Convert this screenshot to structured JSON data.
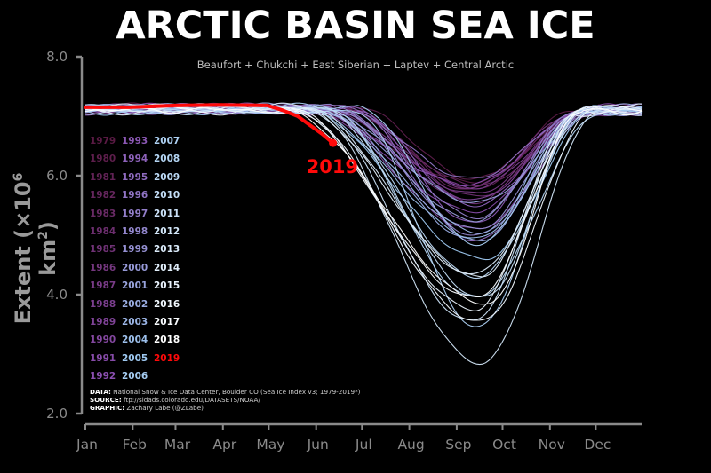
{
  "title": "ARCTIC BASIN SEA ICE",
  "subtitle": "Beaufort + Chukchi + East Siberian + Laptev + Central Arctic",
  "ylabel_text": "Extent (×10",
  "ylabel_sup": "6",
  "ylabel_unit": " km",
  "ylabel_sup2": "2",
  "ylabel_close": ")",
  "sources": {
    "data_label": "DATA:",
    "data_text": " National Snow & Ice Data Center, Boulder CO (Sea Ice Index v3; 1979-2019*)",
    "source_label": "SOURCE:",
    "source_text": " ftp://sidads.colorado.edu/DATASETS/NOAA/",
    "graphic_label": "GRAPHIC:",
    "graphic_text": " Zachary Labe (@ZLabe)"
  },
  "highlight_label": "2019",
  "colors": {
    "highlight": "#ff0a0a",
    "axis": "#8a8a8a",
    "early": "#5a1a44",
    "mid": "#8a4fb0",
    "late": "#9ec8f0",
    "latest": "#ffffff"
  },
  "legend_years": [
    [
      "1979",
      "1993",
      "2007"
    ],
    [
      "1980",
      "1994",
      "2008"
    ],
    [
      "1981",
      "1995",
      "2009"
    ],
    [
      "1982",
      "1996",
      "2010"
    ],
    [
      "1983",
      "1997",
      "2011"
    ],
    [
      "1984",
      "1998",
      "2012"
    ],
    [
      "1985",
      "1999",
      "2013"
    ],
    [
      "1986",
      "2000",
      "2014"
    ],
    [
      "1987",
      "2001",
      "2015"
    ],
    [
      "1988",
      "2002",
      "2016"
    ],
    [
      "1989",
      "2003",
      "2017"
    ],
    [
      "1990",
      "2004",
      "2018"
    ],
    [
      "1991",
      "2005",
      "2019"
    ],
    [
      "1992",
      "2006"
    ]
  ],
  "chart_data": {
    "type": "line",
    "title": "ARCTIC BASIN SEA ICE",
    "subtitle": "Beaufort + Chukchi + East Siberian + Laptev + Central Arctic",
    "ylabel": "Extent (×10^6 km^2)",
    "xlabel": "",
    "ylim": [
      2.0,
      8.0
    ],
    "yticks": [
      "2.0",
      "4.0",
      "6.0",
      "8.0"
    ],
    "xticks": [
      "Jan",
      "Feb",
      "Mar",
      "Apr",
      "May",
      "Jun",
      "Jul",
      "Aug",
      "Sep",
      "Oct",
      "Nov",
      "Dec"
    ],
    "grid": false,
    "legend_placement": "left",
    "series": [
      {
        "name": "1979",
        "min": 5.9,
        "min_day": 255
      },
      {
        "name": "1980",
        "min": 5.95,
        "min_day": 255
      },
      {
        "name": "1981",
        "min": 5.75,
        "min_day": 252
      },
      {
        "name": "1982",
        "min": 5.85,
        "min_day": 255
      },
      {
        "name": "1983",
        "min": 5.8,
        "min_day": 255
      },
      {
        "name": "1984",
        "min": 5.65,
        "min_day": 257
      },
      {
        "name": "1985",
        "min": 5.55,
        "min_day": 255
      },
      {
        "name": "1986",
        "min": 5.8,
        "min_day": 253
      },
      {
        "name": "1987",
        "min": 5.7,
        "min_day": 255
      },
      {
        "name": "1988",
        "min": 5.8,
        "min_day": 256
      },
      {
        "name": "1989",
        "min": 5.6,
        "min_day": 258
      },
      {
        "name": "1990",
        "min": 5.1,
        "min_day": 256
      },
      {
        "name": "1991",
        "min": 5.4,
        "min_day": 256
      },
      {
        "name": "1992",
        "min": 5.85,
        "min_day": 252
      },
      {
        "name": "1993",
        "min": 5.2,
        "min_day": 255
      },
      {
        "name": "1994",
        "min": 5.5,
        "min_day": 255
      },
      {
        "name": "1995",
        "min": 4.9,
        "min_day": 257
      },
      {
        "name": "1996",
        "min": 5.95,
        "min_day": 254
      },
      {
        "name": "1997",
        "min": 5.3,
        "min_day": 258
      },
      {
        "name": "1998",
        "min": 5.0,
        "min_day": 257
      },
      {
        "name": "1999",
        "min": 5.1,
        "min_day": 257
      },
      {
        "name": "2000",
        "min": 5.25,
        "min_day": 256
      },
      {
        "name": "2001",
        "min": 5.55,
        "min_day": 257
      },
      {
        "name": "2002",
        "min": 4.9,
        "min_day": 258
      },
      {
        "name": "2003",
        "min": 5.05,
        "min_day": 260
      },
      {
        "name": "2004",
        "min": 4.95,
        "min_day": 259
      },
      {
        "name": "2005",
        "min": 4.6,
        "min_day": 262
      },
      {
        "name": "2006",
        "min": 4.85,
        "min_day": 257
      },
      {
        "name": "2007",
        "min": 3.45,
        "min_day": 258
      },
      {
        "name": "2008",
        "min": 3.95,
        "min_day": 256
      },
      {
        "name": "2009",
        "min": 4.3,
        "min_day": 257
      },
      {
        "name": "2010",
        "min": 3.95,
        "min_day": 262
      },
      {
        "name": "2011",
        "min": 3.55,
        "min_day": 254
      },
      {
        "name": "2012",
        "min": 2.85,
        "min_day": 260
      },
      {
        "name": "2013",
        "min": 4.35,
        "min_day": 256
      },
      {
        "name": "2014",
        "min": 4.3,
        "min_day": 259
      },
      {
        "name": "2015",
        "min": 3.75,
        "min_day": 256
      },
      {
        "name": "2016",
        "min": 3.55,
        "min_day": 260
      },
      {
        "name": "2017",
        "min": 3.95,
        "min_day": 256
      },
      {
        "name": "2018",
        "min": 3.85,
        "min_day": 265
      },
      {
        "name": "2019",
        "partial_through_day": 163,
        "x": [
          1,
          30,
          60,
          90,
          120,
          130,
          140,
          148,
          156,
          163
        ],
        "values": [
          7.15,
          7.15,
          7.18,
          7.19,
          7.18,
          7.1,
          7.0,
          6.85,
          6.7,
          6.55
        ]
      }
    ],
    "annotations": [
      "2019"
    ]
  }
}
